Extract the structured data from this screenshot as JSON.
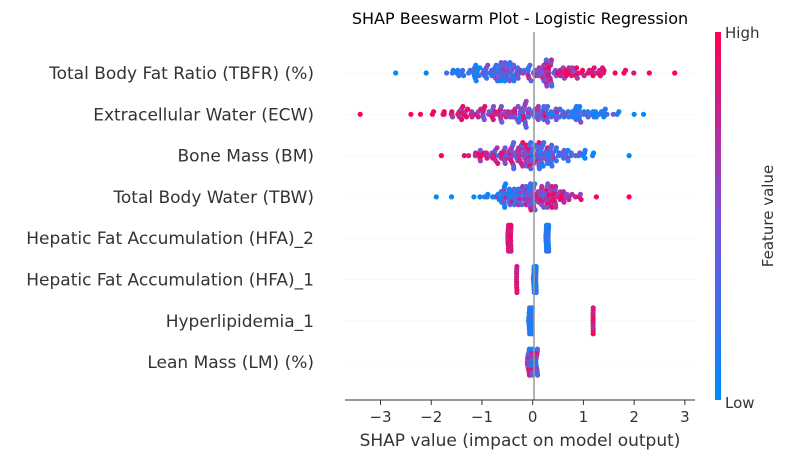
{
  "chart_data": {
    "type": "scatter",
    "title": "SHAP Beeswarm Plot - Logistic Regression",
    "xlabel": "SHAP value (impact on model output)",
    "xlim": [
      -3.7,
      3.2
    ],
    "x_ticks": [
      "−3",
      "−2",
      "−1",
      "0",
      "1",
      "2",
      "3"
    ],
    "x_tick_values": [
      -3,
      -2,
      -1,
      0,
      1,
      2,
      3
    ],
    "colorbar": {
      "label": "Feature value",
      "high": "High",
      "low": "Low",
      "low_color": "#008bfb",
      "high_color": "#ff0052"
    },
    "features": [
      {
        "name": "Total Body Fat Ratio (TBFR) (%)",
        "low_side": -1.3,
        "low_spread": 0.55,
        "high_side": 1.0,
        "high_spread": 0.6,
        "extremes": [
          [
            -2.7,
            0.0
          ],
          [
            2.8,
            1.0
          ],
          [
            2.3,
            1.0
          ],
          [
            -2.1,
            0.0
          ]
        ],
        "density": 1.0
      },
      {
        "name": "Extracellular Water (ECW)",
        "low_side": 0.9,
        "low_spread": 0.6,
        "high_side": -1.0,
        "high_spread": 0.6,
        "extremes": [
          [
            -3.4,
            1.0
          ],
          [
            -2.4,
            1.0
          ],
          [
            2.0,
            0.0
          ],
          [
            1.7,
            0.0
          ]
        ],
        "density": 1.0
      },
      {
        "name": "Bone Mass (BM)",
        "low_side": 0.65,
        "low_spread": 0.35,
        "high_side": -0.75,
        "high_spread": 0.5,
        "extremes": [
          [
            -1.8,
            1.0
          ],
          [
            1.9,
            0.0
          ],
          [
            1.2,
            0.0
          ]
        ],
        "density": 0.95
      },
      {
        "name": "Total Body Water (TBW)",
        "low_side": -0.55,
        "low_spread": 0.3,
        "high_side": 0.6,
        "high_spread": 0.4,
        "extremes": [
          [
            -1.9,
            0.0
          ],
          [
            1.9,
            1.0
          ],
          [
            -1.6,
            0.0
          ]
        ],
        "density": 0.85
      },
      {
        "name": "Hepatic Fat Accumulation (HFA)_2",
        "clusters": [
          [
            -0.45,
            1.0,
            0.08
          ],
          [
            0.3,
            0.0,
            0.08
          ]
        ]
      },
      {
        "name": "Hepatic Fat Accumulation (HFA)_1",
        "clusters": [
          [
            -0.3,
            1.0,
            0.04
          ],
          [
            0.05,
            0.0,
            0.08
          ]
        ]
      },
      {
        "name": "Hyperlipidemia_1",
        "clusters": [
          [
            -0.03,
            0.0,
            0.1
          ],
          [
            1.2,
            1.0,
            0.02
          ]
        ]
      },
      {
        "name": "Lean Mass (LM) (%)",
        "clusters": [
          [
            0.0,
            0.5,
            0.22
          ]
        ]
      }
    ]
  }
}
